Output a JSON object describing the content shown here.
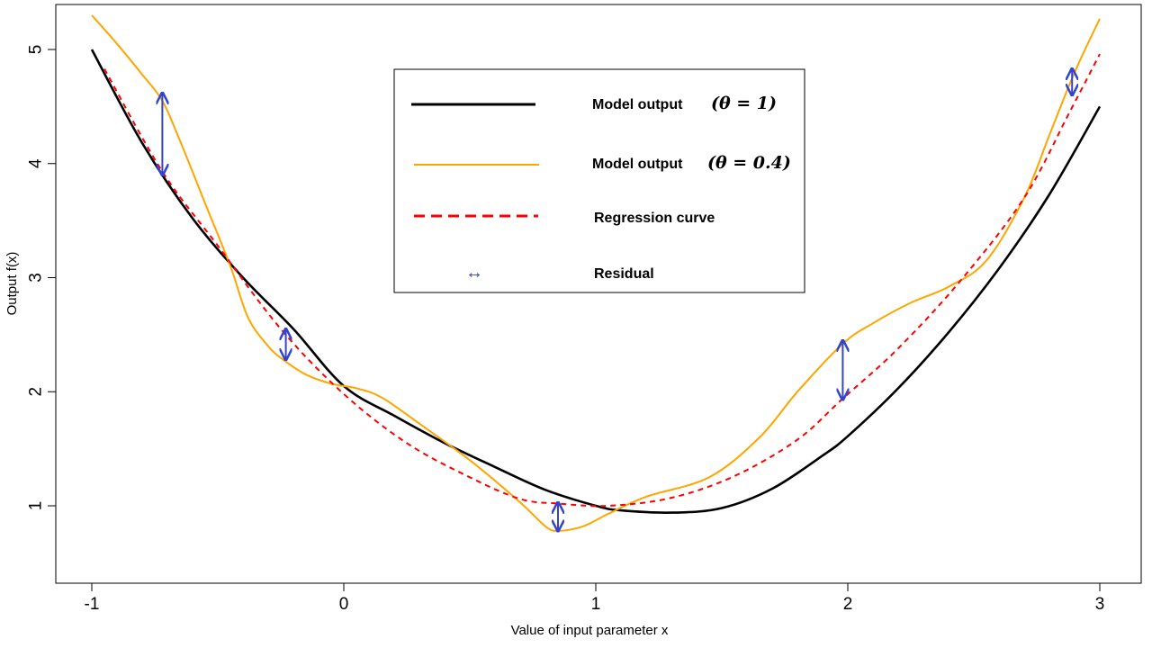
{
  "chart_data": {
    "type": "line",
    "xlabel": "Value of input parameter x",
    "ylabel": "Output f(x)",
    "xlim": [
      -1.15,
      3.15
    ],
    "ylim": [
      0.4,
      5.4
    ],
    "x_ticks": [
      -1,
      0,
      1,
      2,
      3
    ],
    "y_ticks": [
      1,
      2,
      3,
      4,
      5
    ],
    "x_tick_labels": [
      "-1",
      "0",
      "1",
      "2",
      "3"
    ],
    "y_tick_labels": [
      "1",
      "2",
      "3",
      "4",
      "5"
    ],
    "grid": false,
    "legend_position": "top-center",
    "series": [
      {
        "color": "#000000",
        "style": "solid",
        "points": [
          [
            -1.0,
            5.0
          ],
          [
            -0.8,
            4.18
          ],
          [
            -0.6,
            3.52
          ],
          [
            -0.4,
            3.0
          ],
          [
            -0.2,
            2.55
          ],
          [
            0.0,
            2.05
          ],
          [
            0.2,
            1.79
          ],
          [
            0.4,
            1.55
          ],
          [
            0.6,
            1.34
          ],
          [
            0.8,
            1.14
          ],
          [
            1.0,
            1.0
          ],
          [
            1.1,
            0.96
          ],
          [
            1.3,
            0.94
          ],
          [
            1.5,
            0.98
          ],
          [
            1.7,
            1.15
          ],
          [
            1.9,
            1.44
          ],
          [
            2.0,
            1.61
          ],
          [
            2.2,
            2.03
          ],
          [
            2.4,
            2.52
          ],
          [
            2.6,
            3.08
          ],
          [
            2.8,
            3.73
          ],
          [
            3.0,
            4.5
          ]
        ]
      },
      {
        "color": "#ffa500",
        "style": "solid",
        "points": [
          [
            -1.0,
            5.3
          ],
          [
            -0.9,
            5.05
          ],
          [
            -0.8,
            4.78
          ],
          [
            -0.72,
            4.55
          ],
          [
            -0.65,
            4.2
          ],
          [
            -0.55,
            3.65
          ],
          [
            -0.45,
            3.1
          ],
          [
            -0.38,
            2.65
          ],
          [
            -0.3,
            2.4
          ],
          [
            -0.24,
            2.28
          ],
          [
            -0.15,
            2.15
          ],
          [
            -0.05,
            2.07
          ],
          [
            0.05,
            2.03
          ],
          [
            0.15,
            1.95
          ],
          [
            0.3,
            1.72
          ],
          [
            0.5,
            1.4
          ],
          [
            0.7,
            1.03
          ],
          [
            0.8,
            0.82
          ],
          [
            0.85,
            0.78
          ],
          [
            0.95,
            0.82
          ],
          [
            1.05,
            0.93
          ],
          [
            1.2,
            1.08
          ],
          [
            1.45,
            1.25
          ],
          [
            1.65,
            1.6
          ],
          [
            1.8,
            2.0
          ],
          [
            1.98,
            2.42
          ],
          [
            2.1,
            2.6
          ],
          [
            2.25,
            2.78
          ],
          [
            2.4,
            2.92
          ],
          [
            2.55,
            3.15
          ],
          [
            2.7,
            3.7
          ],
          [
            2.8,
            4.25
          ],
          [
            2.9,
            4.8
          ],
          [
            3.0,
            5.27
          ]
        ]
      },
      {
        "color": "#ff0000",
        "style": "dashed",
        "points": [
          [
            -0.95,
            4.83
          ],
          [
            -0.72,
            3.93
          ],
          [
            -0.5,
            3.28
          ],
          [
            -0.25,
            2.55
          ],
          [
            0.0,
            1.98
          ],
          [
            0.25,
            1.55
          ],
          [
            0.5,
            1.25
          ],
          [
            0.7,
            1.06
          ],
          [
            0.85,
            1.02
          ],
          [
            1.05,
            1.0
          ],
          [
            1.3,
            1.07
          ],
          [
            1.55,
            1.26
          ],
          [
            1.8,
            1.58
          ],
          [
            1.98,
            1.94
          ],
          [
            2.2,
            2.38
          ],
          [
            2.45,
            2.98
          ],
          [
            2.7,
            3.7
          ],
          [
            2.88,
            4.45
          ],
          [
            3.0,
            4.96
          ]
        ]
      }
    ],
    "residuals": [
      {
        "x": -0.72,
        "y_from": 3.9,
        "y_to": 4.62
      },
      {
        "x": -0.23,
        "y_from": 2.28,
        "y_to": 2.55
      },
      {
        "x": 0.85,
        "y_from": 0.78,
        "y_to": 1.03
      },
      {
        "x": 1.98,
        "y_from": 1.93,
        "y_to": 2.45
      },
      {
        "x": 2.89,
        "y_from": 4.6,
        "y_to": 4.83
      }
    ],
    "residual_color": "#3344cc",
    "legend": [
      {
        "text": "Model output",
        "math": "(θ = 1)",
        "color": "#000000",
        "style": "solid"
      },
      {
        "text": "Model output",
        "math": "(θ = 0.4)",
        "color": "#ffa500",
        "style": "solid"
      },
      {
        "text": "Regression curve",
        "math": "",
        "color": "#ff0000",
        "style": "dashed"
      },
      {
        "text": "Residual",
        "math": "",
        "color": "#3344cc",
        "style": "arrow",
        "symbol": "↔"
      }
    ]
  }
}
